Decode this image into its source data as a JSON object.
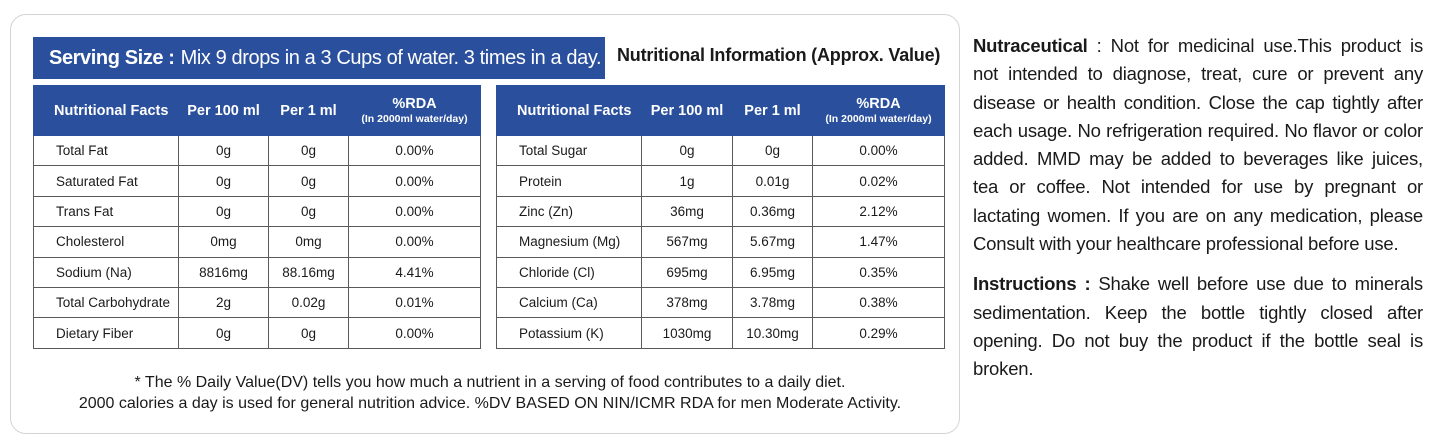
{
  "serving": {
    "label": "Serving Size :",
    "text": "Mix 9 drops in a 3 Cups of water. 3 times in a day."
  },
  "nutrition_title": "Nutritional Information (Approx. Value)",
  "table_headers": {
    "name": "Nutritional Facts",
    "per100": "Per 100 ml",
    "per1": "Per 1 ml",
    "rda": "%RDA",
    "rda_sub": "(In 2000ml water/day)"
  },
  "left_table": [
    {
      "name": "Total Fat",
      "per100": "0g",
      "per1": "0g",
      "rda": "0.00%"
    },
    {
      "name": "Saturated Fat",
      "per100": "0g",
      "per1": "0g",
      "rda": "0.00%"
    },
    {
      "name": "Trans Fat",
      "per100": "0g",
      "per1": "0g",
      "rda": "0.00%"
    },
    {
      "name": "Cholesterol",
      "per100": "0mg",
      "per1": "0mg",
      "rda": "0.00%"
    },
    {
      "name": "Sodium (Na)",
      "per100": "8816mg",
      "per1": "88.16mg",
      "rda": "4.41%"
    },
    {
      "name": "Total Carbohydrate",
      "per100": "2g",
      "per1": "0.02g",
      "rda": "0.01%"
    },
    {
      "name": "Dietary Fiber",
      "per100": "0g",
      "per1": "0g",
      "rda": "0.00%"
    }
  ],
  "right_table": [
    {
      "name": "Total Sugar",
      "per100": "0g",
      "per1": "0g",
      "rda": "0.00%"
    },
    {
      "name": "Protein",
      "per100": "1g",
      "per1": "0.01g",
      "rda": "0.02%"
    },
    {
      "name": "Zinc (Zn)",
      "per100": "36mg",
      "per1": "0.36mg",
      "rda": "2.12%"
    },
    {
      "name": "Magnesium (Mg)",
      "per100": "567mg",
      "per1": "5.67mg",
      "rda": "1.47%"
    },
    {
      "name": "Chloride (Cl)",
      "per100": "695mg",
      "per1": "6.95mg",
      "rda": "0.35%"
    },
    {
      "name": "Calcium (Ca)",
      "per100": "378mg",
      "per1": "3.78mg",
      "rda": "0.38%"
    },
    {
      "name": "Potassium (K)",
      "per100": "1030mg",
      "per1": "10.30mg",
      "rda": "0.29%"
    }
  ],
  "footnote": {
    "line1": "* The % Daily Value(DV) tells you how much a nutrient in a serving of food contributes to a daily diet.",
    "line2": "2000 calories a day is used for general nutrition advice. %DV BASED ON NIN/ICMR RDA for men Moderate Activity."
  },
  "nutraceutical": {
    "label": "Nutraceutical",
    "text": ": Not for medicinal use.This product is not intended to diagnose, treat, cure or prevent any disease or health condition. Close the cap tightly after each usage. No refrigeration required. No flavor or color added. MMD may be added to beverages like juices, tea or coffee. Not intended for use by pregnant or lactating women. If you are on any medication, please Consult with your healthcare professional before use."
  },
  "instructions": {
    "label": "Instructions :",
    "text": "Shake well before use due to minerals sedimentation. Keep the bottle tightly closed after opening. Do not buy the product if the bottle seal is broken."
  },
  "colors": {
    "header_blue": "#2a4f9d",
    "text": "#1a1a1a"
  }
}
